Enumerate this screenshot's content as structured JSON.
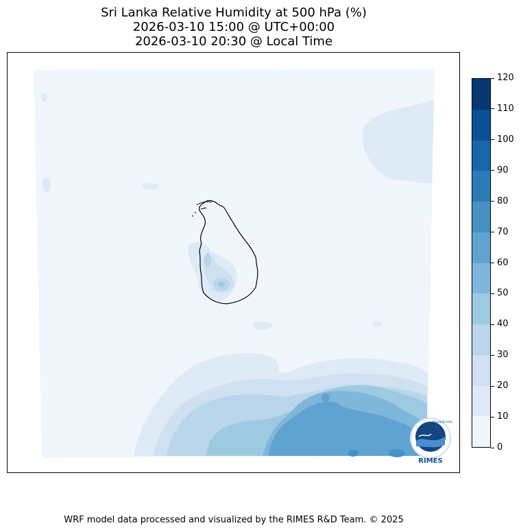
{
  "titles": [
    "Sri Lanka Relative Humidity at 500 hPa (%)",
    "2026-03-10 15:00 @ UTC+00:00",
    "2026-03-10 20:30 @ Local Time"
  ],
  "footer": "WRF model data processed and visualized by the RIMES R&D Team. © 2025",
  "logo": {
    "text": "RIMES",
    "ring_text": "Hazard Info"
  },
  "colors": [
    "#f0f6fc",
    "#deebf6",
    "#cfe0f1",
    "#b9d6ea",
    "#9dcae0",
    "#7fb7da",
    "#60a3d1",
    "#4591c6",
    "#2d7ab9",
    "#1865ab",
    "#0b4f94",
    "#083775"
  ],
  "chart_data": {
    "type": "heatmap",
    "title": "Sri Lanka Relative Humidity at 500 hPa (%)",
    "variable": "Relative Humidity at 500 hPa",
    "units": "%",
    "colorbar": {
      "levels": [
        0,
        10,
        20,
        30,
        40,
        50,
        60,
        70,
        80,
        90,
        100,
        110,
        120
      ],
      "tick_labels": [
        "0",
        "10",
        "20",
        "30",
        "40",
        "50",
        "60",
        "70",
        "80",
        "90",
        "100",
        "110",
        "120"
      ]
    },
    "regions": [
      {
        "area": "most of domain",
        "range": [
          0,
          10
        ]
      },
      {
        "area": "northeast of domain",
        "range": [
          10,
          20
        ]
      },
      {
        "area": "over Sri Lanka (center)",
        "range": [
          30,
          40
        ]
      },
      {
        "area": "south of domain",
        "range": [
          40,
          60
        ]
      },
      {
        "area": "south-central maximum",
        "range": [
          60,
          70
        ]
      }
    ]
  }
}
